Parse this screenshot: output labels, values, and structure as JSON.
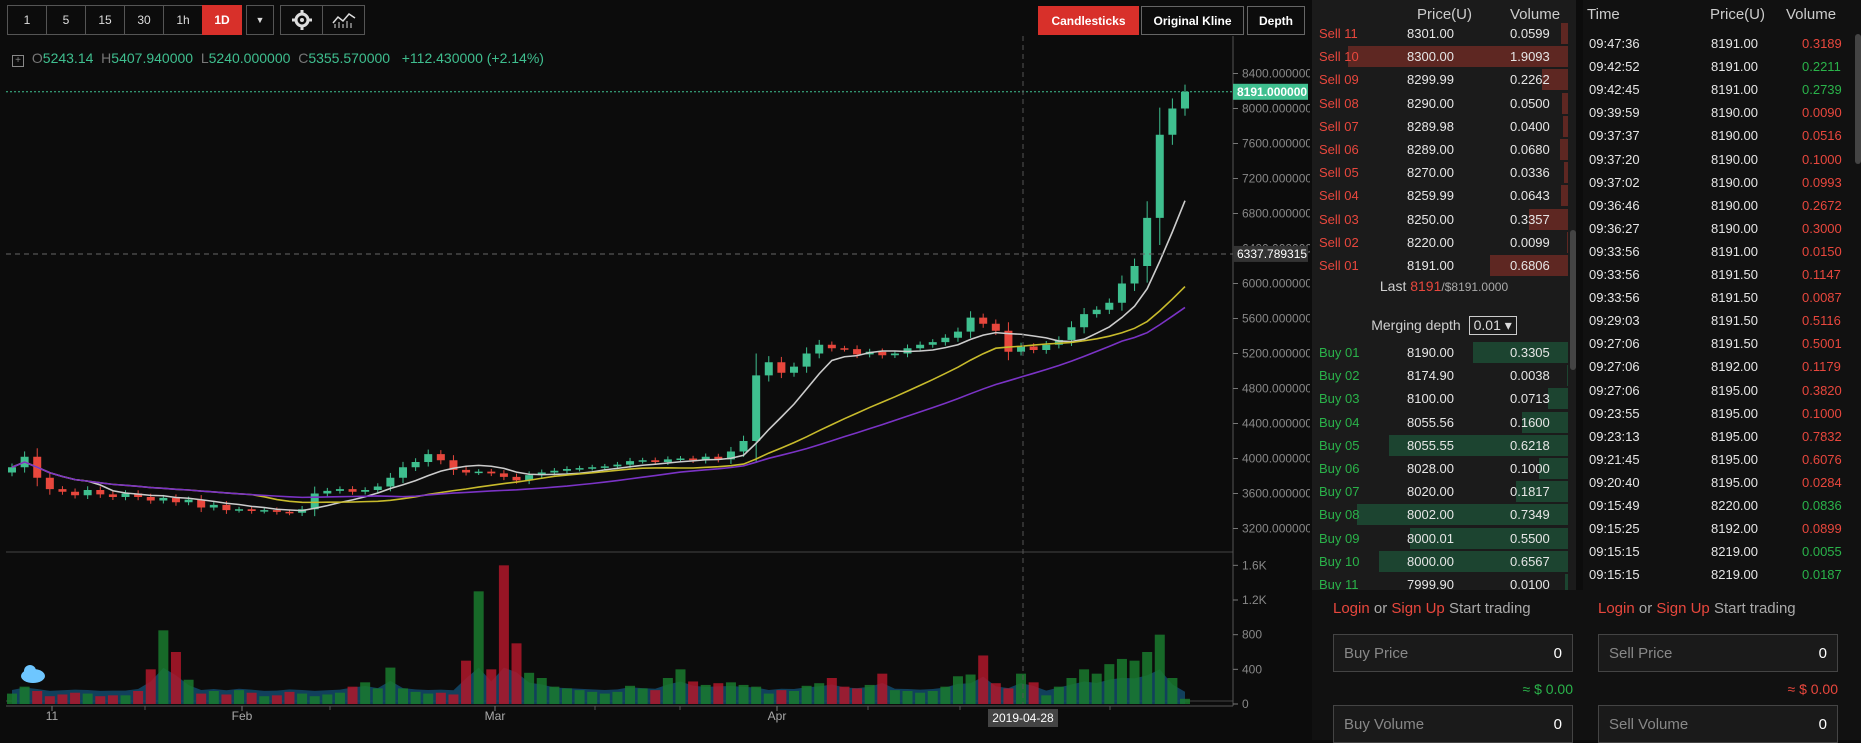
{
  "toolbar": {
    "intervals": [
      "1",
      "5",
      "15",
      "30",
      "1h",
      "1D"
    ],
    "active_interval": "1D",
    "candlesticks_label": "Candlesticks",
    "original_kline_label": "Original Kline",
    "depth_label": "Depth"
  },
  "ohlc": {
    "open_label": "O",
    "open": "5243.14",
    "high_label": "H",
    "high": "5407.940000",
    "low_label": "L",
    "low": "5240.000000",
    "close_label": "C",
    "close": "5355.570000",
    "change": "+112.430000 (+2.14%)"
  },
  "price_axis": [
    "8400.000000",
    "8000.000000",
    "7600.000000",
    "7200.000000",
    "6800.000000",
    "6400.000000",
    "6000.000000",
    "5600.000000",
    "5200.000000",
    "4800.000000",
    "4400.000000",
    "4000.000000",
    "3600.000000",
    "3200.000000"
  ],
  "current_price_label": "8191.000000",
  "crosshair_price_label": "6337.789315",
  "volume_axis": [
    "1.6K",
    "1.2K",
    "800",
    "400",
    "0"
  ],
  "time_axis": [
    "11",
    "Feb",
    "Mar",
    "Apr"
  ],
  "crosshair_date_label": "2019-04-28",
  "colors": {
    "up": "#3fbf8f",
    "down": "#e8473d",
    "accent": "#d8302a"
  },
  "order_book": {
    "headers": {
      "price": "Price(U)",
      "volume": "Volume"
    },
    "asks": [
      {
        "label": "Sell 11",
        "price": "8301.00",
        "volume": "0.0599"
      },
      {
        "label": "Sell 10",
        "price": "8300.00",
        "volume": "1.9093"
      },
      {
        "label": "Sell 09",
        "price": "8299.99",
        "volume": "0.2262"
      },
      {
        "label": "Sell 08",
        "price": "8290.00",
        "volume": "0.0500"
      },
      {
        "label": "Sell 07",
        "price": "8289.98",
        "volume": "0.0400"
      },
      {
        "label": "Sell 06",
        "price": "8289.00",
        "volume": "0.0680"
      },
      {
        "label": "Sell 05",
        "price": "8270.00",
        "volume": "0.0336"
      },
      {
        "label": "Sell 04",
        "price": "8259.99",
        "volume": "0.0643"
      },
      {
        "label": "Sell 03",
        "price": "8250.00",
        "volume": "0.3357"
      },
      {
        "label": "Sell 02",
        "price": "8220.00",
        "volume": "0.0099"
      },
      {
        "label": "Sell 01",
        "price": "8191.00",
        "volume": "0.6806"
      }
    ],
    "last_label": "Last",
    "last_price": "8191",
    "last_usd": "/$8191.0000",
    "merging_label": "Merging depth",
    "merging_value": "0.01",
    "bids": [
      {
        "label": "Buy 01",
        "price": "8190.00",
        "volume": "0.3305"
      },
      {
        "label": "Buy 02",
        "price": "8174.90",
        "volume": "0.0038"
      },
      {
        "label": "Buy 03",
        "price": "8100.00",
        "volume": "0.0713"
      },
      {
        "label": "Buy 04",
        "price": "8055.56",
        "volume": "0.1600"
      },
      {
        "label": "Buy 05",
        "price": "8055.55",
        "volume": "0.6218"
      },
      {
        "label": "Buy 06",
        "price": "8028.00",
        "volume": "0.1000"
      },
      {
        "label": "Buy 07",
        "price": "8020.00",
        "volume": "0.1817"
      },
      {
        "label": "Buy 08",
        "price": "8002.00",
        "volume": "0.7349"
      },
      {
        "label": "Buy 09",
        "price": "8000.01",
        "volume": "0.5500"
      },
      {
        "label": "Buy 10",
        "price": "8000.00",
        "volume": "0.6567"
      },
      {
        "label": "Buy 11",
        "price": "7999.90",
        "volume": "0.0100"
      }
    ]
  },
  "trades": {
    "headers": {
      "time": "Time",
      "price": "Price(U)",
      "volume": "Volume"
    },
    "rows": [
      {
        "time": "09:47:36",
        "price": "8191.00",
        "volume": "0.3189",
        "side": "sell"
      },
      {
        "time": "09:42:52",
        "price": "8191.00",
        "volume": "0.2211",
        "side": "buy"
      },
      {
        "time": "09:42:45",
        "price": "8191.00",
        "volume": "0.2739",
        "side": "buy"
      },
      {
        "time": "09:39:59",
        "price": "8190.00",
        "volume": "0.0090",
        "side": "sell"
      },
      {
        "time": "09:37:37",
        "price": "8190.00",
        "volume": "0.0516",
        "side": "sell"
      },
      {
        "time": "09:37:20",
        "price": "8190.00",
        "volume": "0.1000",
        "side": "sell"
      },
      {
        "time": "09:37:02",
        "price": "8190.00",
        "volume": "0.0993",
        "side": "sell"
      },
      {
        "time": "09:36:46",
        "price": "8190.00",
        "volume": "0.2672",
        "side": "sell"
      },
      {
        "time": "09:36:27",
        "price": "8190.00",
        "volume": "0.3000",
        "side": "sell"
      },
      {
        "time": "09:33:56",
        "price": "8191.00",
        "volume": "0.0150",
        "side": "sell"
      },
      {
        "time": "09:33:56",
        "price": "8191.50",
        "volume": "0.1147",
        "side": "sell"
      },
      {
        "time": "09:33:56",
        "price": "8191.50",
        "volume": "0.0087",
        "side": "sell"
      },
      {
        "time": "09:29:03",
        "price": "8191.50",
        "volume": "0.5116",
        "side": "sell"
      },
      {
        "time": "09:27:06",
        "price": "8191.50",
        "volume": "0.5001",
        "side": "sell"
      },
      {
        "time": "09:27:06",
        "price": "8192.00",
        "volume": "0.1179",
        "side": "sell"
      },
      {
        "time": "09:27:06",
        "price": "8195.00",
        "volume": "0.3820",
        "side": "sell"
      },
      {
        "time": "09:23:55",
        "price": "8195.00",
        "volume": "0.1000",
        "side": "sell"
      },
      {
        "time": "09:23:13",
        "price": "8195.00",
        "volume": "0.7832",
        "side": "sell"
      },
      {
        "time": "09:21:45",
        "price": "8195.00",
        "volume": "0.6076",
        "side": "sell"
      },
      {
        "time": "09:20:40",
        "price": "8195.00",
        "volume": "0.0284",
        "side": "sell"
      },
      {
        "time": "09:15:49",
        "price": "8220.00",
        "volume": "0.0836",
        "side": "buy"
      },
      {
        "time": "09:15:25",
        "price": "8192.00",
        "volume": "0.0899",
        "side": "sell"
      },
      {
        "time": "09:15:15",
        "price": "8219.00",
        "volume": "0.0055",
        "side": "buy"
      },
      {
        "time": "09:15:15",
        "price": "8219.00",
        "volume": "0.0187",
        "side": "buy"
      }
    ]
  },
  "trade_form": {
    "login": "Login",
    "or": "or",
    "signup": "Sign Up",
    "start": "Start trading",
    "buy_price_placeholder": "Buy Price",
    "buy_price_value": "0",
    "buy_usd": "≈ $ 0.00",
    "sell_price_placeholder": "Sell Price",
    "sell_price_value": "0",
    "sell_usd": "≈ $ 0.00",
    "buy_volume_placeholder": "Buy Volume",
    "buy_volume_value": "0",
    "sell_volume_placeholder": "Sell Volume",
    "sell_volume_value": "0"
  },
  "chart_data": {
    "type": "candlestick",
    "title": "",
    "ylim": [
      3000,
      8600
    ],
    "volume_ylim": [
      0,
      1800
    ],
    "x_ticks": [
      "11",
      "Feb",
      "Mar",
      "Apr"
    ],
    "daily_closes": [
      3900,
      4020,
      3780,
      3650,
      3620,
      3580,
      3640,
      3590,
      3560,
      3600,
      3560,
      3520,
      3550,
      3500,
      3530,
      3440,
      3470,
      3410,
      3420,
      3400,
      3410,
      3390,
      3380,
      3420,
      3600,
      3630,
      3650,
      3620,
      3640,
      3680,
      3780,
      3900,
      3960,
      4050,
      3980,
      3870,
      3840,
      3850,
      3830,
      3790,
      3750,
      3810,
      3840,
      3860,
      3880,
      3890,
      3900,
      3910,
      3930,
      3970,
      3980,
      3960,
      3990,
      4000,
      3980,
      4020,
      3990,
      4080,
      4200,
      4950,
      5100,
      4980,
      5050,
      5200,
      5300,
      5260,
      5250,
      5190,
      5220,
      5180,
      5200,
      5260,
      5300,
      5330,
      5380,
      5450,
      5610,
      5540,
      5460,
      5220,
      5280,
      5240,
      5300,
      5355,
      5500,
      5650,
      5700,
      5780,
      6000,
      6200,
      6750,
      7700,
      8000,
      8191
    ],
    "volume_series": [
      120,
      200,
      150,
      90,
      110,
      130,
      120,
      90,
      100,
      100,
      150,
      400,
      850,
      600,
      280,
      120,
      150,
      110,
      160,
      130,
      90,
      100,
      140,
      120,
      90,
      110,
      130,
      200,
      250,
      180,
      420,
      180,
      140,
      120,
      130,
      110,
      500,
      1300,
      400,
      1600,
      700,
      360,
      300,
      200,
      180,
      160,
      140,
      120,
      140,
      210,
      180,
      160,
      300,
      400,
      260,
      220,
      240,
      250,
      220,
      200,
      120,
      160,
      150,
      210,
      240,
      300,
      200,
      180,
      220,
      350,
      160,
      150,
      130,
      150,
      200,
      320,
      340,
      560,
      240,
      180,
      350,
      250,
      100,
      200,
      300,
      400,
      350,
      460,
      520,
      500,
      600,
      800,
      300,
      60
    ],
    "ma_series": [
      {
        "color": "#cccccc"
      },
      {
        "color": "#c8bb2c"
      },
      {
        "color": "#7b33c6"
      }
    ]
  }
}
